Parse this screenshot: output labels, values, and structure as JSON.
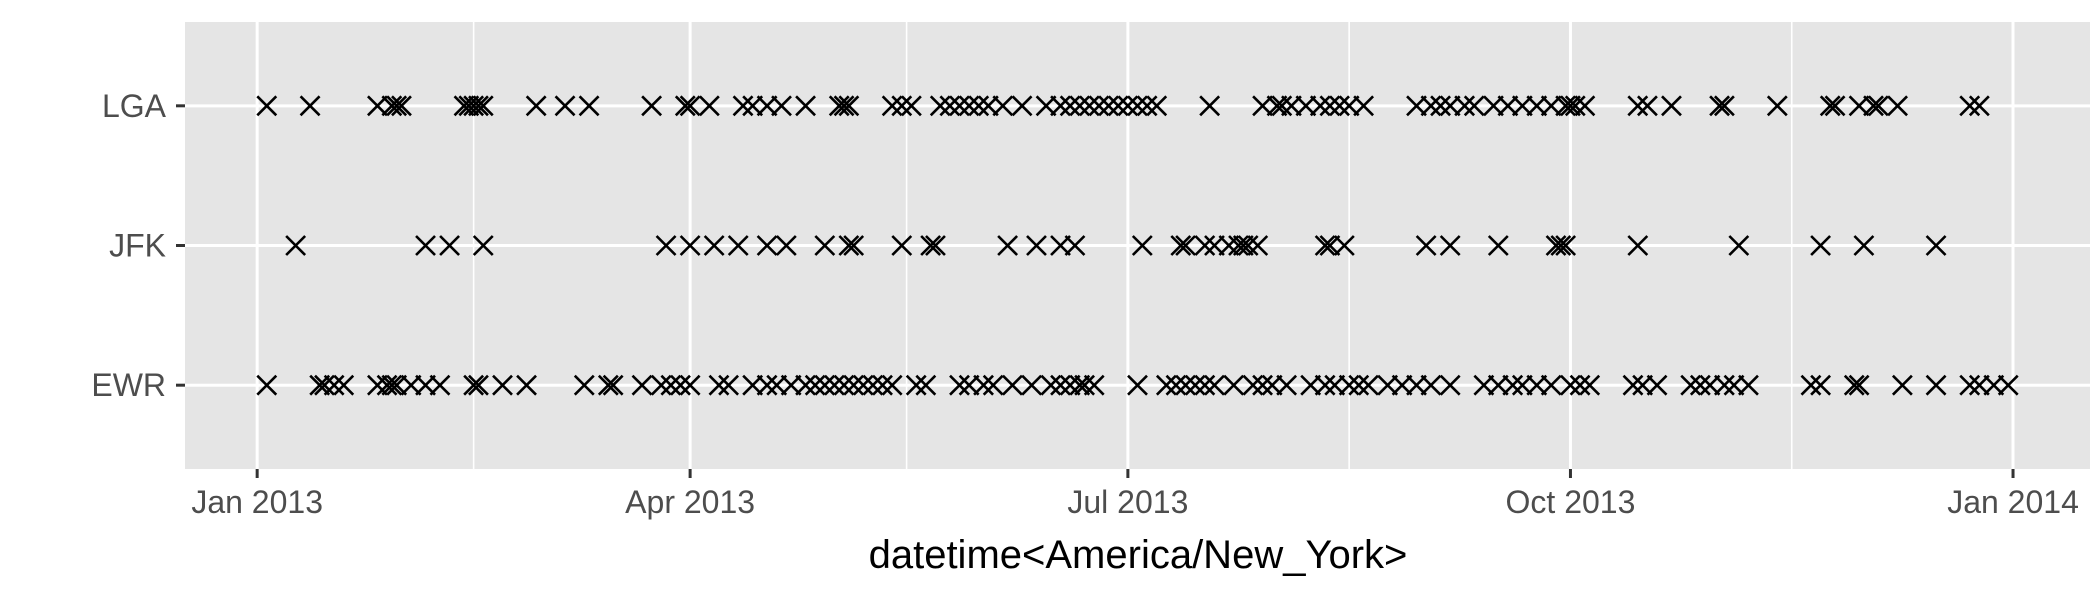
{
  "chart_data": {
    "type": "scatter",
    "xlabel": "datetime<America/New_York>",
    "ylabel": "",
    "x_ticks": [
      "Jan 2013",
      "Apr 2013",
      "Jul 2013",
      "Oct 2013",
      "Jan 2014"
    ],
    "y_categories": [
      "EWR",
      "JFK",
      "LGA"
    ],
    "xlim": [
      "2012-12-17",
      "2014-01-17"
    ],
    "marker": "x",
    "grid": true,
    "colors": {
      "panel": "#e5e5e5",
      "grid": "#ffffff",
      "marker": "#000000",
      "text": "#4d4d4d"
    },
    "series": [
      {
        "name": "LGA",
        "dates": [
          "2013-01-03",
          "2013-01-12",
          "2013-01-26",
          "2013-01-29",
          "2013-01-30",
          "2013-01-31",
          "2013-02-13",
          "2013-02-14",
          "2013-02-15",
          "2013-02-16",
          "2013-02-17",
          "2013-02-28",
          "2013-03-06",
          "2013-03-11",
          "2013-03-24",
          "2013-03-31",
          "2013-04-01",
          "2013-04-05",
          "2013-04-12",
          "2013-04-14",
          "2013-04-17",
          "2013-04-20",
          "2013-04-25",
          "2013-05-02",
          "2013-05-03",
          "2013-05-04",
          "2013-05-13",
          "2013-05-15",
          "2013-05-17",
          "2013-05-23",
          "2013-05-25",
          "2013-05-27",
          "2013-05-29",
          "2013-05-31",
          "2013-06-02",
          "2013-06-05",
          "2013-06-09",
          "2013-06-14",
          "2013-06-17",
          "2013-06-19",
          "2013-06-21",
          "2013-06-23",
          "2013-06-25",
          "2013-06-27",
          "2013-06-29",
          "2013-07-01",
          "2013-07-03",
          "2013-07-05",
          "2013-07-07",
          "2013-07-18",
          "2013-07-29",
          "2013-08-01",
          "2013-08-02",
          "2013-08-04",
          "2013-08-07",
          "2013-08-10",
          "2013-08-12",
          "2013-08-14",
          "2013-08-16",
          "2013-08-19",
          "2013-08-30",
          "2013-09-02",
          "2013-09-04",
          "2013-09-06",
          "2013-09-09",
          "2013-09-11",
          "2013-09-15",
          "2013-09-18",
          "2013-09-21",
          "2013-09-24",
          "2013-09-27",
          "2013-09-30",
          "2013-10-01",
          "2013-10-02",
          "2013-10-04",
          "2013-10-15",
          "2013-10-17",
          "2013-10-22",
          "2013-11-01",
          "2013-11-02",
          "2013-11-13",
          "2013-11-24",
          "2013-11-25",
          "2013-11-30",
          "2013-12-03",
          "2013-12-04",
          "2013-12-08",
          "2013-12-23",
          "2013-12-25"
        ]
      },
      {
        "name": "JFK",
        "dates": [
          "2013-01-09",
          "2013-02-05",
          "2013-02-10",
          "2013-02-17",
          "2013-03-27",
          "2013-04-01",
          "2013-04-06",
          "2013-04-11",
          "2013-04-17",
          "2013-04-21",
          "2013-04-29",
          "2013-05-04",
          "2013-05-05",
          "2013-05-15",
          "2013-05-21",
          "2013-05-22",
          "2013-06-06",
          "2013-06-12",
          "2013-06-17",
          "2013-06-20",
          "2013-07-04",
          "2013-07-12",
          "2013-07-13",
          "2013-07-17",
          "2013-07-19",
          "2013-07-22",
          "2013-07-24",
          "2013-07-25",
          "2013-07-26",
          "2013-07-28",
          "2013-08-11",
          "2013-08-12",
          "2013-08-15",
          "2013-09-01",
          "2013-09-06",
          "2013-09-16",
          "2013-09-28",
          "2013-09-29",
          "2013-09-30",
          "2013-10-15",
          "2013-11-05",
          "2013-11-22",
          "2013-12-01",
          "2013-12-16"
        ]
      },
      {
        "name": "EWR",
        "dates": [
          "2013-01-03",
          "2013-01-14",
          "2013-01-15",
          "2013-01-17",
          "2013-01-19",
          "2013-01-26",
          "2013-01-28",
          "2013-01-29",
          "2013-01-30",
          "2013-02-02",
          "2013-02-05",
          "2013-02-08",
          "2013-02-15",
          "2013-02-16",
          "2013-02-21",
          "2013-02-26",
          "2013-03-10",
          "2013-03-15",
          "2013-03-16",
          "2013-03-22",
          "2013-03-26",
          "2013-03-28",
          "2013-03-30",
          "2013-04-01",
          "2013-04-07",
          "2013-04-09",
          "2013-04-14",
          "2013-04-17",
          "2013-04-19",
          "2013-04-22",
          "2013-04-25",
          "2013-04-27",
          "2013-04-29",
          "2013-05-01",
          "2013-05-03",
          "2013-05-05",
          "2013-05-07",
          "2013-05-09",
          "2013-05-11",
          "2013-05-13",
          "2013-05-18",
          "2013-05-20",
          "2013-05-27",
          "2013-05-29",
          "2013-06-01",
          "2013-06-03",
          "2013-06-07",
          "2013-06-11",
          "2013-06-15",
          "2013-06-17",
          "2013-06-19",
          "2013-06-21",
          "2013-06-22",
          "2013-06-24",
          "2013-07-03",
          "2013-07-09",
          "2013-07-11",
          "2013-07-13",
          "2013-07-15",
          "2013-07-17",
          "2013-07-19",
          "2013-07-23",
          "2013-07-27",
          "2013-07-29",
          "2013-07-31",
          "2013-08-03",
          "2013-08-08",
          "2013-08-11",
          "2013-08-13",
          "2013-08-16",
          "2013-08-18",
          "2013-08-20",
          "2013-08-24",
          "2013-08-27",
          "2013-08-30",
          "2013-09-02",
          "2013-09-06",
          "2013-09-13",
          "2013-09-16",
          "2013-09-19",
          "2013-09-21",
          "2013-09-24",
          "2013-09-27",
          "2013-10-01",
          "2013-10-03",
          "2013-10-05",
          "2013-10-14",
          "2013-10-16",
          "2013-10-19",
          "2013-10-26",
          "2013-10-28",
          "2013-10-30",
          "2013-11-02",
          "2013-11-04",
          "2013-11-07",
          "2013-11-20",
          "2013-11-22",
          "2013-11-29",
          "2013-11-30",
          "2013-12-09",
          "2013-12-16",
          "2013-12-23",
          "2013-12-25",
          "2013-12-28",
          "2013-12-31"
        ]
      }
    ]
  }
}
